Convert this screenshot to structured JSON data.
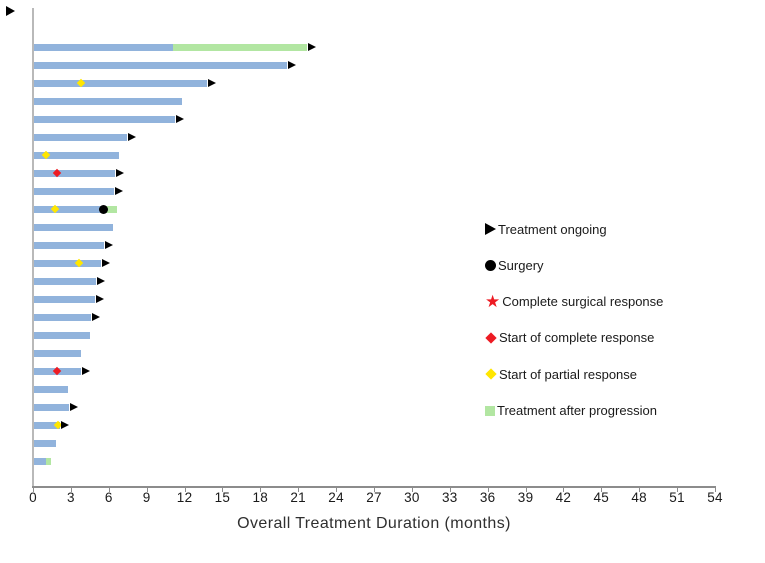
{
  "chart_data": {
    "type": "bar",
    "subtype": "swimmer-plot",
    "title": "",
    "xlabel": "Overall Treatment Duration (months)",
    "ylabel": "",
    "xlim": [
      0,
      54
    ],
    "xticks": [
      0,
      3,
      6,
      9,
      12,
      15,
      18,
      21,
      24,
      27,
      30,
      33,
      36,
      39,
      42,
      45,
      48,
      51,
      54
    ],
    "grid": false,
    "legend_position": "right",
    "colors": {
      "bar_blue": "#91B3DC",
      "progression_green": "#B2E6A2",
      "ongoing_black": "#000000",
      "surgery_black": "#000000",
      "complete_red": "#ED1B23",
      "partial_yellow": "#FFE600"
    },
    "legend": [
      {
        "marker": "arrow",
        "color": "#000000",
        "label": "Treatment ongoing"
      },
      {
        "marker": "circle",
        "color": "#000000",
        "label": "Surgery"
      },
      {
        "marker": "star",
        "color": "#ED1B23",
        "label": "Complete surgical response"
      },
      {
        "marker": "diamond",
        "color": "#ED1B23",
        "label": "Start of complete response"
      },
      {
        "marker": "diamond",
        "color": "#FFE600",
        "label": "Start of partial response"
      },
      {
        "marker": "square",
        "color": "#B2E6A2",
        "label": "Treatment after progression"
      }
    ],
    "patients": [
      {
        "duration": 11.1,
        "progression_to": 21.7,
        "ongoing": true,
        "markers": []
      },
      {
        "duration": 20.1,
        "progression_to": null,
        "ongoing": true,
        "markers": []
      },
      {
        "duration": 13.8,
        "progression_to": null,
        "ongoing": true,
        "markers": [
          {
            "type": "partial",
            "at": 3.8
          }
        ]
      },
      {
        "duration": 11.8,
        "progression_to": null,
        "ongoing": false,
        "markers": []
      },
      {
        "duration": 11.2,
        "progression_to": null,
        "ongoing": true,
        "markers": []
      },
      {
        "duration": 7.4,
        "progression_to": null,
        "ongoing": true,
        "markers": []
      },
      {
        "duration": 6.8,
        "progression_to": null,
        "ongoing": false,
        "markers": [
          {
            "type": "partial",
            "at": 1.0
          }
        ]
      },
      {
        "duration": 6.5,
        "progression_to": null,
        "ongoing": true,
        "markers": [
          {
            "type": "complete",
            "at": 1.9
          }
        ]
      },
      {
        "duration": 6.4,
        "progression_to": null,
        "ongoing": true,
        "markers": []
      },
      {
        "duration": 5.5,
        "progression_to": 6.65,
        "ongoing": false,
        "markers": [
          {
            "type": "partial",
            "at": 1.7
          },
          {
            "type": "surgery",
            "at": 5.6
          }
        ]
      },
      {
        "duration": 6.3,
        "progression_to": null,
        "ongoing": false,
        "markers": []
      },
      {
        "duration": 5.6,
        "progression_to": null,
        "ongoing": true,
        "markers": []
      },
      {
        "duration": 5.4,
        "progression_to": null,
        "ongoing": true,
        "markers": [
          {
            "type": "partial",
            "at": 3.6
          }
        ]
      },
      {
        "duration": 5.0,
        "progression_to": null,
        "ongoing": true,
        "markers": []
      },
      {
        "duration": 4.9,
        "progression_to": null,
        "ongoing": true,
        "markers": []
      },
      {
        "duration": 4.6,
        "progression_to": null,
        "ongoing": true,
        "markers": []
      },
      {
        "duration": 4.5,
        "progression_to": null,
        "ongoing": false,
        "markers": []
      },
      {
        "duration": 3.8,
        "progression_to": null,
        "ongoing": false,
        "markers": []
      },
      {
        "duration": 3.8,
        "progression_to": null,
        "ongoing": true,
        "markers": [
          {
            "type": "complete",
            "at": 1.9
          }
        ]
      },
      {
        "duration": 2.8,
        "progression_to": null,
        "ongoing": false,
        "markers": []
      },
      {
        "duration": 2.85,
        "progression_to": null,
        "ongoing": true,
        "markers": []
      },
      {
        "duration": 2.1,
        "progression_to": null,
        "ongoing": true,
        "markers": [
          {
            "type": "partial",
            "at": 2.0
          }
        ]
      },
      {
        "duration": 1.85,
        "progression_to": null,
        "ongoing": false,
        "markers": []
      },
      {
        "duration": 1.05,
        "progression_to": 1.4,
        "ongoing": false,
        "markers": []
      }
    ]
  }
}
